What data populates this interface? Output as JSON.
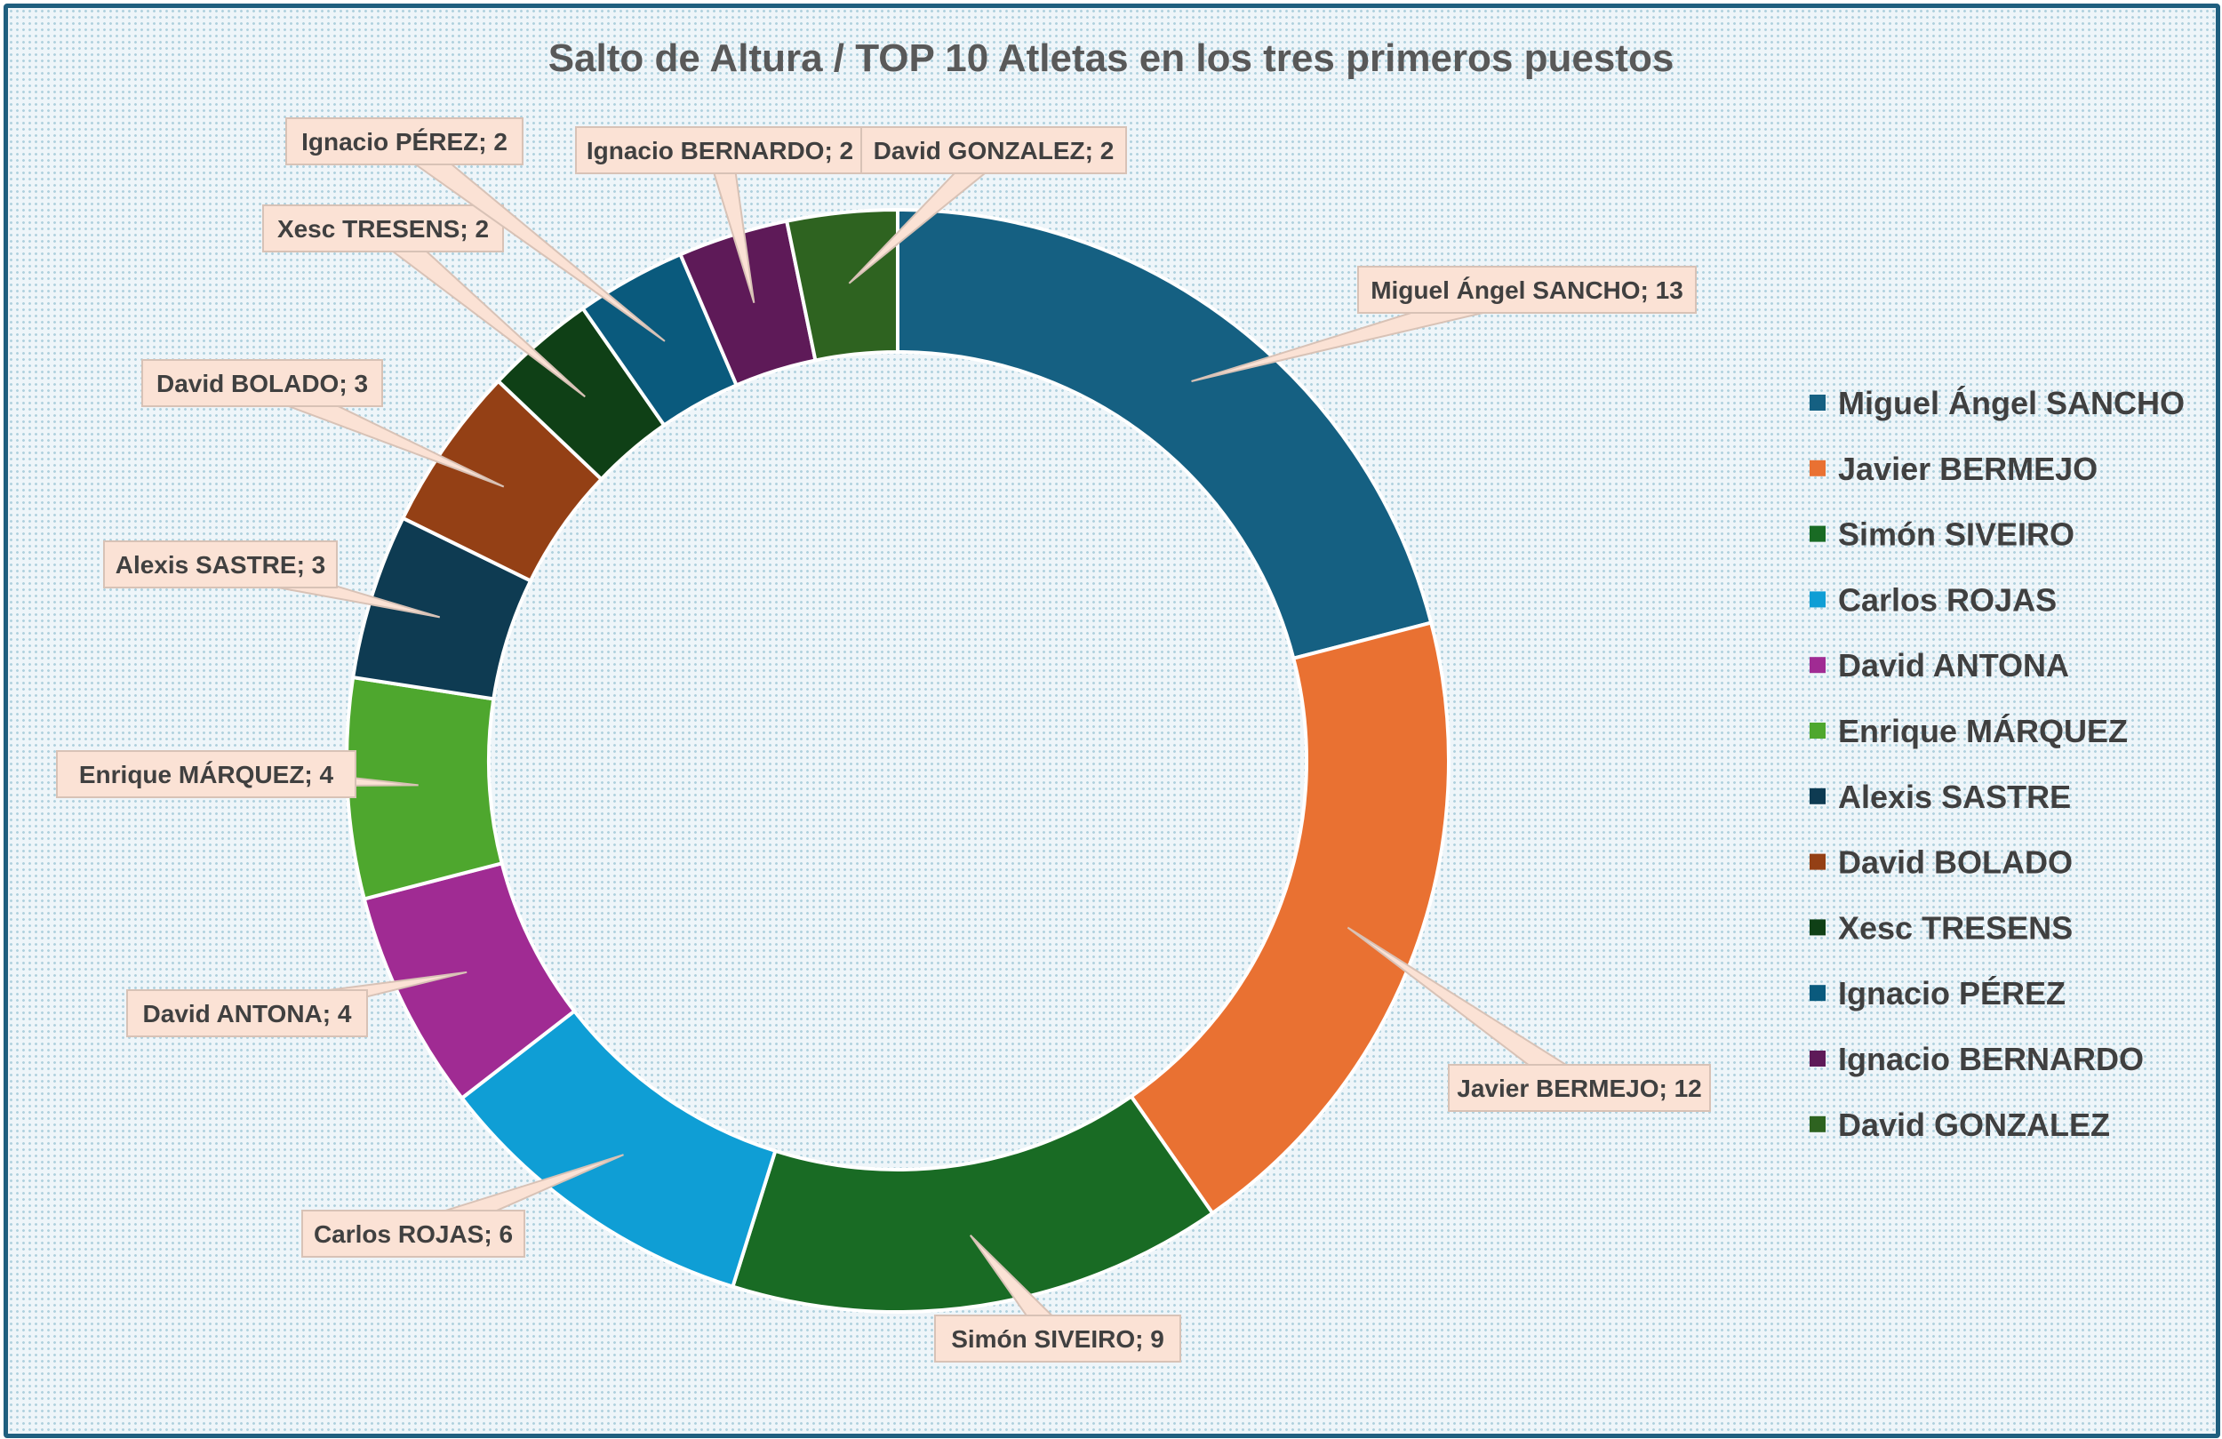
{
  "chart_data": {
    "type": "doughnut",
    "title": "Salto de Altura / TOP 10 Atletas en los tres primeros puestos",
    "categories": [
      "Miguel Ángel SANCHO",
      "Javier BERMEJO",
      "Simón SIVEIRO",
      "Carlos ROJAS",
      "David ANTONA",
      "Enrique MÁRQUEZ",
      "Alexis SASTRE",
      "David BOLADO",
      "Xesc TRESENS",
      "Ignacio PÉREZ",
      "Ignacio BERNARDO",
      "David GONZALEZ"
    ],
    "values": [
      13,
      12,
      9,
      6,
      4,
      4,
      3,
      3,
      2,
      2,
      2,
      2
    ],
    "data_labels": [
      "Miguel Ángel SANCHO; 13",
      "Javier BERMEJO; 12",
      "Simón SIVEIRO; 9",
      "Carlos ROJAS; 6",
      "David ANTONA; 4",
      "Enrique MÁRQUEZ; 4",
      "Alexis SASTRE; 3",
      "David BOLADO; 3",
      "Xesc TRESENS; 2",
      "Ignacio PÉREZ; 2",
      "Ignacio BERNARDO; 2",
      "David GONZALEZ; 2"
    ],
    "colors": [
      "#156082",
      "#e97132",
      "#196b24",
      "#0f9ed5",
      "#a02b93",
      "#4ea72e",
      "#0e3b52",
      "#944015",
      "#0f4016",
      "#0a5a7d",
      "#5e1a58",
      "#2e6320"
    ],
    "legend_position": "right",
    "label_fill": "#fbe2d5",
    "label_stroke": "#d8c2b6"
  }
}
